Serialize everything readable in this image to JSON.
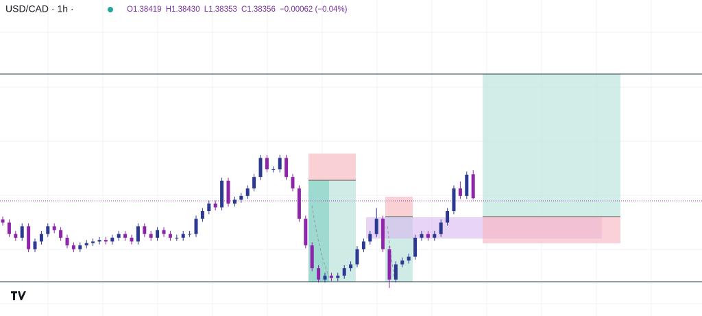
{
  "header": {
    "symbol": "USD/CAD · 1h ·",
    "ohlc": [
      "O1.38419",
      "H1.38430",
      "L1.38353",
      "C1.38356"
    ],
    "change": "−0.00062 (−0.04%)"
  },
  "chart": {
    "candles": [
      [
        1.383,
        1.38308,
        1.38284,
        1.38292
      ],
      [
        1.38292,
        1.383,
        1.38254,
        1.38262
      ],
      [
        1.38262,
        1.3827,
        1.38244,
        1.38252
      ],
      [
        1.38252,
        1.3829,
        1.38244,
        1.38282
      ],
      [
        1.38282,
        1.3829,
        1.38214,
        1.38222
      ],
      [
        1.38222,
        1.3825,
        1.38214,
        1.38242
      ],
      [
        1.38242,
        1.3827,
        1.38234,
        1.38262
      ],
      [
        1.38262,
        1.3829,
        1.38254,
        1.38282
      ],
      [
        1.38282,
        1.3829,
        1.38264,
        1.38272
      ],
      [
        1.38272,
        1.3828,
        1.38244,
        1.38252
      ],
      [
        1.38252,
        1.3826,
        1.38224,
        1.38232
      ],
      [
        1.38232,
        1.3824,
        1.38214,
        1.38222
      ],
      [
        1.38222,
        1.3824,
        1.38214,
        1.38232
      ],
      [
        1.38232,
        1.38246,
        1.38224,
        1.38238
      ],
      [
        1.38238,
        1.3825,
        1.3823,
        1.38242
      ],
      [
        1.38242,
        1.38254,
        1.38234,
        1.38246
      ],
      [
        1.38246,
        1.38254,
        1.38234,
        1.38242
      ],
      [
        1.38242,
        1.3826,
        1.38234,
        1.38252
      ],
      [
        1.38252,
        1.3827,
        1.38244,
        1.38262
      ],
      [
        1.38262,
        1.3827,
        1.38244,
        1.38252
      ],
      [
        1.38252,
        1.3826,
        1.38234,
        1.38242
      ],
      [
        1.38242,
        1.3829,
        1.38234,
        1.38282
      ],
      [
        1.38282,
        1.3829,
        1.38254,
        1.38262
      ],
      [
        1.38262,
        1.3827,
        1.38244,
        1.38252
      ],
      [
        1.38252,
        1.3828,
        1.38244,
        1.38272
      ],
      [
        1.38272,
        1.3828,
        1.38254,
        1.38262
      ],
      [
        1.38262,
        1.3827,
        1.38244,
        1.38252
      ],
      [
        1.38252,
        1.3826,
        1.38244,
        1.38252
      ],
      [
        1.38252,
        1.3827,
        1.38244,
        1.38262
      ],
      [
        1.38262,
        1.3827,
        1.38254,
        1.38262
      ],
      [
        1.38262,
        1.3831,
        1.38254,
        1.38302
      ],
      [
        1.38302,
        1.3833,
        1.38294,
        1.38322
      ],
      [
        1.38322,
        1.3835,
        1.38314,
        1.38342
      ],
      [
        1.38342,
        1.3835,
        1.38324,
        1.38332
      ],
      [
        1.38332,
        1.3841,
        1.38324,
        1.38402
      ],
      [
        1.38402,
        1.3841,
        1.38334,
        1.38342
      ],
      [
        1.38342,
        1.3836,
        1.38334,
        1.38352
      ],
      [
        1.38352,
        1.3837,
        1.38344,
        1.38362
      ],
      [
        1.38362,
        1.3839,
        1.38354,
        1.38382
      ],
      [
        1.38382,
        1.3842,
        1.38374,
        1.38412
      ],
      [
        1.38412,
        1.3847,
        1.38404,
        1.38462
      ],
      [
        1.38462,
        1.3847,
        1.38424,
        1.38432
      ],
      [
        1.38432,
        1.3844,
        1.38424,
        1.38432
      ],
      [
        1.38432,
        1.3847,
        1.38424,
        1.38462
      ],
      [
        1.38462,
        1.3847,
        1.38404,
        1.38412
      ],
      [
        1.38412,
        1.3842,
        1.38374,
        1.38382
      ],
      [
        1.38382,
        1.3839,
        1.38294,
        1.38302
      ],
      [
        1.38302,
        1.3831,
        1.38224,
        1.38232
      ],
      [
        1.38232,
        1.3824,
        1.38164,
        1.38172
      ],
      [
        1.38172,
        1.3818,
        1.38134,
        1.38142
      ],
      [
        1.38142,
        1.3816,
        1.38134,
        1.38152
      ],
      [
        1.38152,
        1.3816,
        1.38138,
        1.38146
      ],
      [
        1.38146,
        1.3816,
        1.38138,
        1.38152
      ],
      [
        1.38152,
        1.3818,
        1.38144,
        1.38172
      ],
      [
        1.38172,
        1.3819,
        1.38164,
        1.38182
      ],
      [
        1.38182,
        1.3823,
        1.38174,
        1.38222
      ],
      [
        1.38222,
        1.3825,
        1.38214,
        1.38242
      ],
      [
        1.38242,
        1.3827,
        1.38234,
        1.38262
      ],
      [
        1.38262,
        1.3833,
        1.38254,
        1.38302
      ],
      [
        1.38302,
        1.3831,
        1.38214,
        1.38222
      ],
      [
        1.38222,
        1.3823,
        1.3812,
        1.38142
      ],
      [
        1.38142,
        1.3819,
        1.38134,
        1.38182
      ],
      [
        1.38182,
        1.382,
        1.38174,
        1.38192
      ],
      [
        1.38192,
        1.3821,
        1.38184,
        1.38202
      ],
      [
        1.38202,
        1.3826,
        1.38194,
        1.38252
      ],
      [
        1.38252,
        1.3827,
        1.38244,
        1.38262
      ],
      [
        1.38262,
        1.3827,
        1.38244,
        1.38252
      ],
      [
        1.38252,
        1.3827,
        1.38244,
        1.38262
      ],
      [
        1.38262,
        1.383,
        1.38254,
        1.38292
      ],
      [
        1.38292,
        1.3833,
        1.38284,
        1.38322
      ],
      [
        1.38322,
        1.3839,
        1.38314,
        1.38382
      ],
      [
        1.38382,
        1.384,
        1.38354,
        1.38362
      ],
      [
        1.38362,
        1.38426,
        1.38354,
        1.38418
      ],
      [
        1.38419,
        1.3843,
        1.38353,
        1.38356
      ]
    ]
  }
}
